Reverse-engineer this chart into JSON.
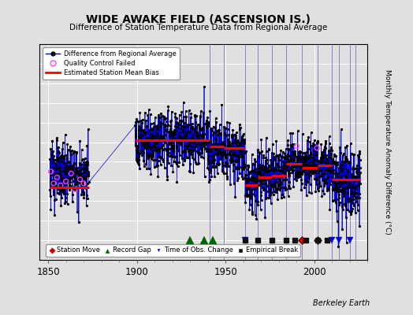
{
  "title": "WIDE AWAKE FIELD (ASCENSION IS.)",
  "subtitle": "Difference of Station Temperature Data from Regional Average",
  "ylabel": "Monthly Temperature Anomaly Difference (°C)",
  "xlabel_note": "Berkeley Earth",
  "xlim": [
    1845,
    2030
  ],
  "ylim_main": [
    -2.5,
    3.0
  ],
  "yticks": [
    -2.5,
    -2,
    -1.5,
    -1,
    -0.5,
    0,
    0.5,
    1,
    1.5,
    2,
    2.5,
    3
  ],
  "xticks": [
    1850,
    1900,
    1950,
    2000
  ],
  "bg_color": "#e0e0e0",
  "plot_bg_color": "#e0e0e0",
  "grid_color": "#ffffff",
  "line_color": "#0000cc",
  "dot_color": "#000000",
  "bias_color": "#ff0000",
  "qc_color": "#ff44ff",
  "station_move_color": "#cc0000",
  "record_gap_color": "#006400",
  "obs_change_color": "#0000cc",
  "empirical_break_color": "#111111",
  "segments": [
    {
      "start": 1851,
      "end": 1873,
      "bias": -0.65
    },
    {
      "start": 1899,
      "end": 1941,
      "bias": 0.55
    },
    {
      "start": 1941,
      "end": 1949,
      "bias": 0.4
    },
    {
      "start": 1949,
      "end": 1961,
      "bias": 0.35
    },
    {
      "start": 1961,
      "end": 1968,
      "bias": -0.6
    },
    {
      "start": 1968,
      "end": 1976,
      "bias": -0.4
    },
    {
      "start": 1976,
      "end": 1984,
      "bias": -0.35
    },
    {
      "start": 1984,
      "end": 1993,
      "bias": -0.05
    },
    {
      "start": 1993,
      "end": 2002,
      "bias": -0.15
    },
    {
      "start": 2002,
      "end": 2010,
      "bias": -0.1
    },
    {
      "start": 2010,
      "end": 2026,
      "bias": -0.45
    }
  ],
  "vertical_lines": [
    1941,
    1949,
    1961,
    1968,
    1976,
    1984,
    1993,
    2002,
    2010,
    2014,
    2020,
    2023
  ],
  "station_moves": [
    1993,
    2002
  ],
  "record_gaps": [
    1930,
    1938,
    1943
  ],
  "obs_changes": [
    1961,
    2010,
    2014,
    2020
  ],
  "empirical_breaks": [
    1961,
    1968,
    1976,
    1984,
    1989,
    1995,
    2002,
    2007
  ],
  "qc_years": [
    1851.5,
    1853.0,
    1855.0,
    1857.0,
    1860.0,
    1863.0,
    1865.0,
    1868.0,
    1870.0,
    1990.0,
    2001.5
  ],
  "qc_vals": [
    -0.25,
    -0.55,
    -0.4,
    -0.6,
    -0.5,
    -0.3,
    -0.7,
    -0.45,
    -0.55,
    0.4,
    0.35
  ],
  "seed": 123
}
